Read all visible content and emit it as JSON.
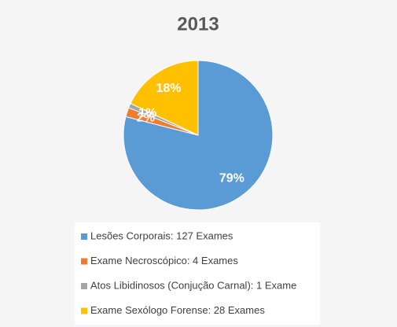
{
  "chart_data": {
    "type": "pie",
    "title": "2013",
    "categories": [
      "Lesões Corporais: 127 Exames",
      "Exame Necroscópico: 4 Exames",
      "Atos Libidinosos (Conjução Carnal): 1 Exame",
      "Exame Sexólogo Forense: 28 Exames"
    ],
    "values": [
      79,
      2,
      1,
      18
    ],
    "value_labels": [
      "79%",
      "2%",
      "1%",
      "18%"
    ],
    "colors": [
      "#5b9bd5",
      "#ed7d31",
      "#a5a5a5",
      "#ffc000"
    ]
  }
}
